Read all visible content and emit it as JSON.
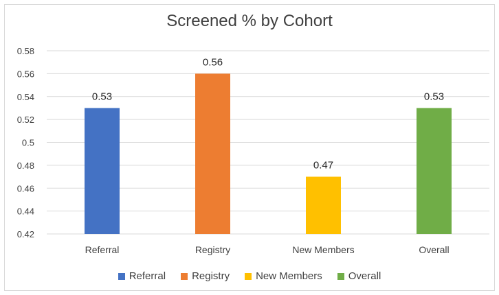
{
  "chart_data": {
    "type": "bar",
    "title": "Screened % by Cohort",
    "categories": [
      "Referral",
      "Registry",
      "New Members",
      "Overall"
    ],
    "values": [
      0.53,
      0.56,
      0.47,
      0.53
    ],
    "value_labels": [
      "0.53",
      "0.56",
      "0.47",
      "0.53"
    ],
    "colors": [
      "#4472C4",
      "#ED7D31",
      "#FFC000",
      "#70AD47"
    ],
    "ylim": [
      0.42,
      0.58
    ],
    "yticks": [
      "0.42",
      "0.44",
      "0.46",
      "0.48",
      "0.5",
      "0.52",
      "0.54",
      "0.56",
      "0.58"
    ],
    "grid": true,
    "legend": {
      "position": "bottom",
      "items": [
        "Referral",
        "Registry",
        "New Members",
        "Overall"
      ]
    }
  }
}
